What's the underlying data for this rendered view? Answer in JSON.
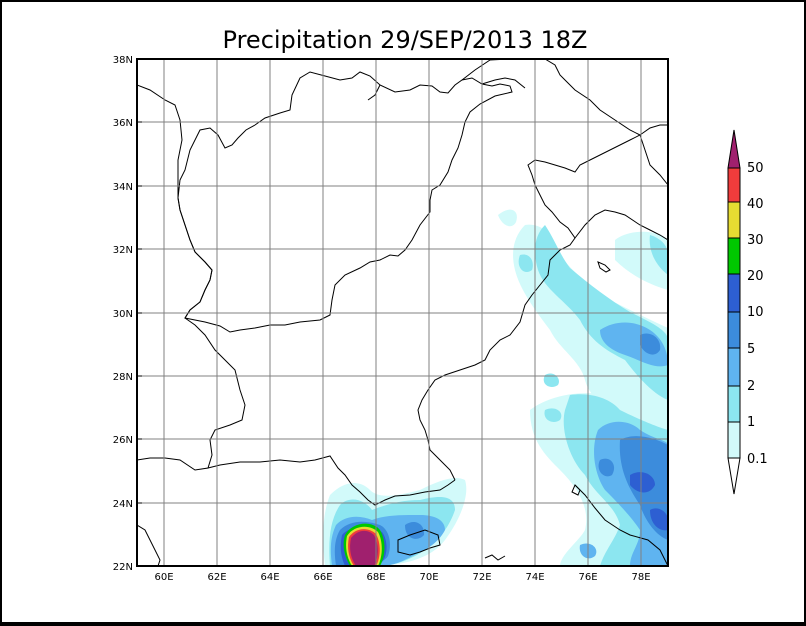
{
  "title": "Precipitation 29/SEP/2013 18Z",
  "lat_labels": [
    "38N",
    "36N",
    "34N",
    "32N",
    "30N",
    "28N",
    "26N",
    "24N",
    "22N"
  ],
  "lon_labels": [
    "60E",
    "62E",
    "64E",
    "66E",
    "68E",
    "70E",
    "72E",
    "74E",
    "76E",
    "78E"
  ],
  "lat_range": [
    22,
    38
  ],
  "lon_range": [
    59,
    79
  ],
  "legend": {
    "labels": [
      "50",
      "40",
      "30",
      "20",
      "10",
      "5",
      "2",
      "1",
      "0.1"
    ],
    "colors": {
      "c50plus": "#a0206e",
      "c40": "#f03c3c",
      "c30": "#e6dc32",
      "c20": "#00c800",
      "c10": "#2d5fd2",
      "c5": "#3c8cdc",
      "c2": "#5fb4f0",
      "c1": "#8ce6f0",
      "c01": "#d2fafa"
    }
  }
}
